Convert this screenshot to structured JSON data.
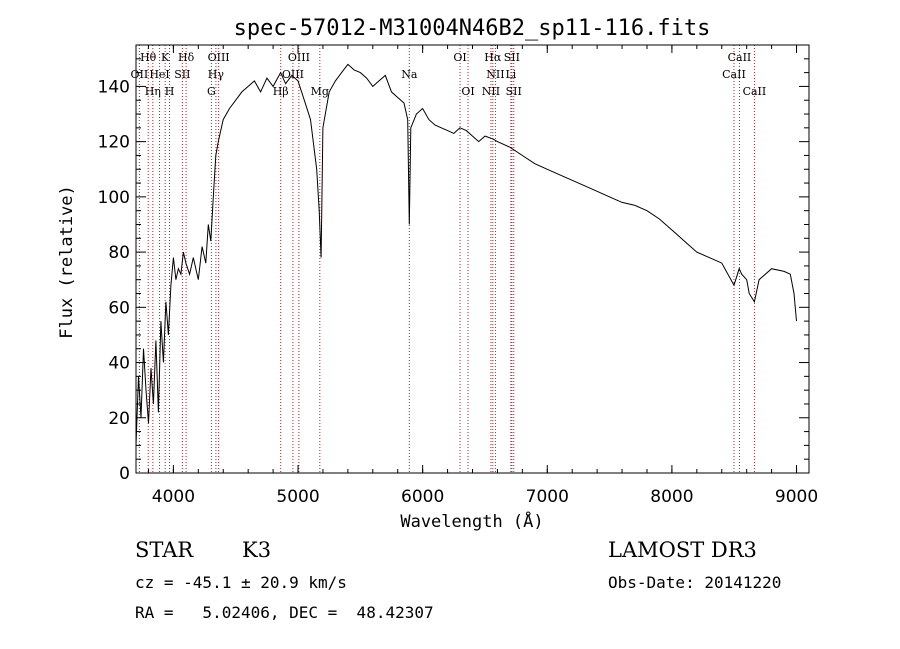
{
  "chart_data": {
    "type": "line",
    "title": "spec-57012-M31004N46B2_sp11-116.fits",
    "xlabel": "Wavelength (Å)",
    "ylabel": "Flux (relative)",
    "xlim": [
      3700,
      9100
    ],
    "ylim": [
      0,
      155
    ],
    "x_ticks": [
      4000,
      5000,
      6000,
      7000,
      8000,
      9000
    ],
    "y_ticks": [
      0,
      20,
      40,
      60,
      80,
      100,
      120,
      140
    ],
    "spectrum": {
      "x": [
        3700,
        3720,
        3740,
        3760,
        3780,
        3800,
        3820,
        3840,
        3860,
        3880,
        3900,
        3920,
        3940,
        3960,
        3980,
        4000,
        4020,
        4040,
        4060,
        4080,
        4100,
        4130,
        4160,
        4200,
        4230,
        4260,
        4280,
        4300,
        4320,
        4340,
        4360,
        4400,
        4450,
        4500,
        4550,
        4600,
        4650,
        4700,
        4750,
        4800,
        4860,
        4900,
        4950,
        5000,
        5050,
        5100,
        5150,
        5170,
        5185,
        5200,
        5250,
        5300,
        5350,
        5400,
        5450,
        5500,
        5550,
        5600,
        5650,
        5700,
        5750,
        5800,
        5850,
        5880,
        5893,
        5905,
        5950,
        6000,
        6050,
        6100,
        6150,
        6200,
        6250,
        6300,
        6350,
        6400,
        6450,
        6500,
        6563,
        6600,
        6700,
        6800,
        6900,
        7000,
        7100,
        7200,
        7300,
        7400,
        7500,
        7600,
        7700,
        7800,
        7900,
        8000,
        8050,
        8100,
        8150,
        8200,
        8300,
        8400,
        8498,
        8540,
        8560,
        8600,
        8620,
        8662,
        8700,
        8800,
        8900,
        8950,
        8980,
        9000
      ],
      "y": [
        10,
        35,
        20,
        45,
        30,
        18,
        38,
        25,
        48,
        22,
        55,
        40,
        62,
        50,
        68,
        78,
        70,
        74,
        72,
        80,
        76,
        72,
        78,
        70,
        82,
        76,
        90,
        84,
        100,
        115,
        120,
        128,
        132,
        135,
        138,
        140,
        142,
        138,
        143,
        140,
        145,
        141,
        144,
        142,
        135,
        128,
        110,
        95,
        78,
        125,
        138,
        142,
        145,
        148,
        146,
        145,
        143,
        140,
        142,
        144,
        138,
        136,
        134,
        128,
        90,
        125,
        130,
        132,
        128,
        126,
        125,
        124,
        123,
        125,
        124,
        122,
        120,
        122,
        121,
        120,
        118,
        115,
        112,
        110,
        108,
        106,
        104,
        102,
        100,
        98,
        97,
        95,
        92,
        88,
        86,
        84,
        82,
        80,
        78,
        76,
        68,
        74,
        72,
        70,
        65,
        62,
        70,
        74,
        73,
        72,
        65,
        55
      ]
    },
    "line_labels": [
      {
        "name": "Hθ",
        "wave": 3798,
        "row": 1
      },
      {
        "name": "OII",
        "wave": 3727,
        "row": 2
      },
      {
        "name": "Hη",
        "wave": 3835,
        "row": 3
      },
      {
        "name": "K",
        "wave": 3934,
        "row": 1
      },
      {
        "name": "HeI",
        "wave": 3889,
        "row": 2
      },
      {
        "name": "H",
        "wave": 3969,
        "row": 3
      },
      {
        "name": "Hδ",
        "wave": 4102,
        "row": 1
      },
      {
        "name": "SII",
        "wave": 4072,
        "row": 2
      },
      {
        "name": "OIII",
        "wave": 4363,
        "row": 1
      },
      {
        "name": "Hγ",
        "wave": 4341,
        "row": 2
      },
      {
        "name": "G",
        "wave": 4305,
        "row": 3
      },
      {
        "name": "OIII",
        "wave": 5007,
        "row": 1
      },
      {
        "name": "OIII",
        "wave": 4959,
        "row": 2
      },
      {
        "name": "Hβ",
        "wave": 4861,
        "row": 3
      },
      {
        "name": "Mg",
        "wave": 5175,
        "row": 3
      },
      {
        "name": "Na",
        "wave": 5893,
        "row": 2
      },
      {
        "name": "OI",
        "wave": 6300,
        "row": 1
      },
      {
        "name": "OI",
        "wave": 6364,
        "row": 3
      },
      {
        "name": "Hα",
        "wave": 6563,
        "row": 1
      },
      {
        "name": "SII",
        "wave": 6716,
        "row": 1
      },
      {
        "name": "NII",
        "wave": 6584,
        "row": 2
      },
      {
        "name": "Li",
        "wave": 6708,
        "row": 2
      },
      {
        "name": "NII",
        "wave": 6548,
        "row": 3
      },
      {
        "name": "SII",
        "wave": 6731,
        "row": 3
      },
      {
        "name": "CaII",
        "wave": 8542,
        "row": 1
      },
      {
        "name": "CaII",
        "wave": 8498,
        "row": 2
      },
      {
        "name": "CaII",
        "wave": 8662,
        "row": 3
      }
    ],
    "marker_lines": [
      3727,
      3798,
      3835,
      3889,
      3934,
      3969,
      4072,
      4102,
      4305,
      4341,
      4363,
      4861,
      4959,
      5007,
      5175,
      5893,
      6300,
      6364,
      6548,
      6563,
      6584,
      6708,
      6716,
      6731,
      8498,
      8542,
      8662
    ]
  },
  "info": {
    "class_label": "STAR",
    "subclass": "K3",
    "survey": "LAMOST DR3",
    "cz": "cz = -45.1 ± 20.9 km/s",
    "obs_date": "Obs-Date: 20141220",
    "coords": "RA =   5.02406, DEC =  48.42307"
  },
  "colors": {
    "axis": "#000000",
    "spectrum": "#000000",
    "marker": "#b22222"
  }
}
